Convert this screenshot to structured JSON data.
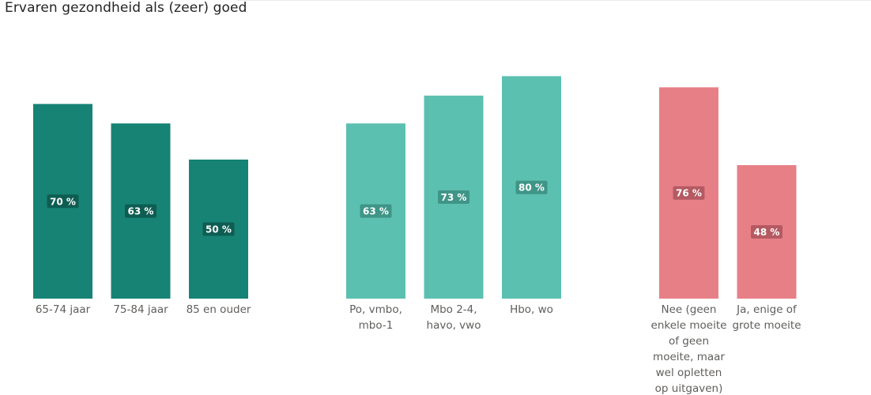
{
  "title": "Ervaren gezondheid als (zeer) goed",
  "colors": {
    "age": "#168374",
    "education": "#5bc0b0",
    "finance": "#e77f87",
    "label_bg_age": "#0e5d52",
    "label_bg_education": "#3f9587",
    "label_bg_finance": "#b55a62"
  },
  "chart_data": [
    {
      "type": "bar",
      "categories": [
        [
          "65-74 jaar"
        ],
        [
          "75-84 jaar"
        ],
        [
          "85 en ouder"
        ]
      ],
      "values": [
        70,
        63,
        50
      ],
      "data_labels": [
        "70 %",
        "63 %",
        "50 %"
      ],
      "color": "#168374",
      "ylim": [
        0,
        100
      ]
    },
    {
      "type": "bar",
      "categories": [
        [
          "Po, vmbo,",
          "mbo-1"
        ],
        [
          "Mbo 2-4,",
          "havo, vwo"
        ],
        [
          "Hbo, wo"
        ]
      ],
      "values": [
        63,
        73,
        80
      ],
      "data_labels": [
        "63 %",
        "73 %",
        "80 %"
      ],
      "color": "#5bc0b0",
      "ylim": [
        0,
        100
      ]
    },
    {
      "type": "bar",
      "categories": [
        [
          "Nee (geen",
          "enkele moeite",
          "of geen",
          "moeite, maar",
          "wel opletten",
          "op uitgaven)"
        ],
        [
          "Ja, enige of",
          "grote moeite"
        ]
      ],
      "values": [
        76,
        48
      ],
      "data_labels": [
        "76 %",
        "48 %"
      ],
      "color": "#e77f87",
      "ylim": [
        0,
        100
      ]
    }
  ]
}
